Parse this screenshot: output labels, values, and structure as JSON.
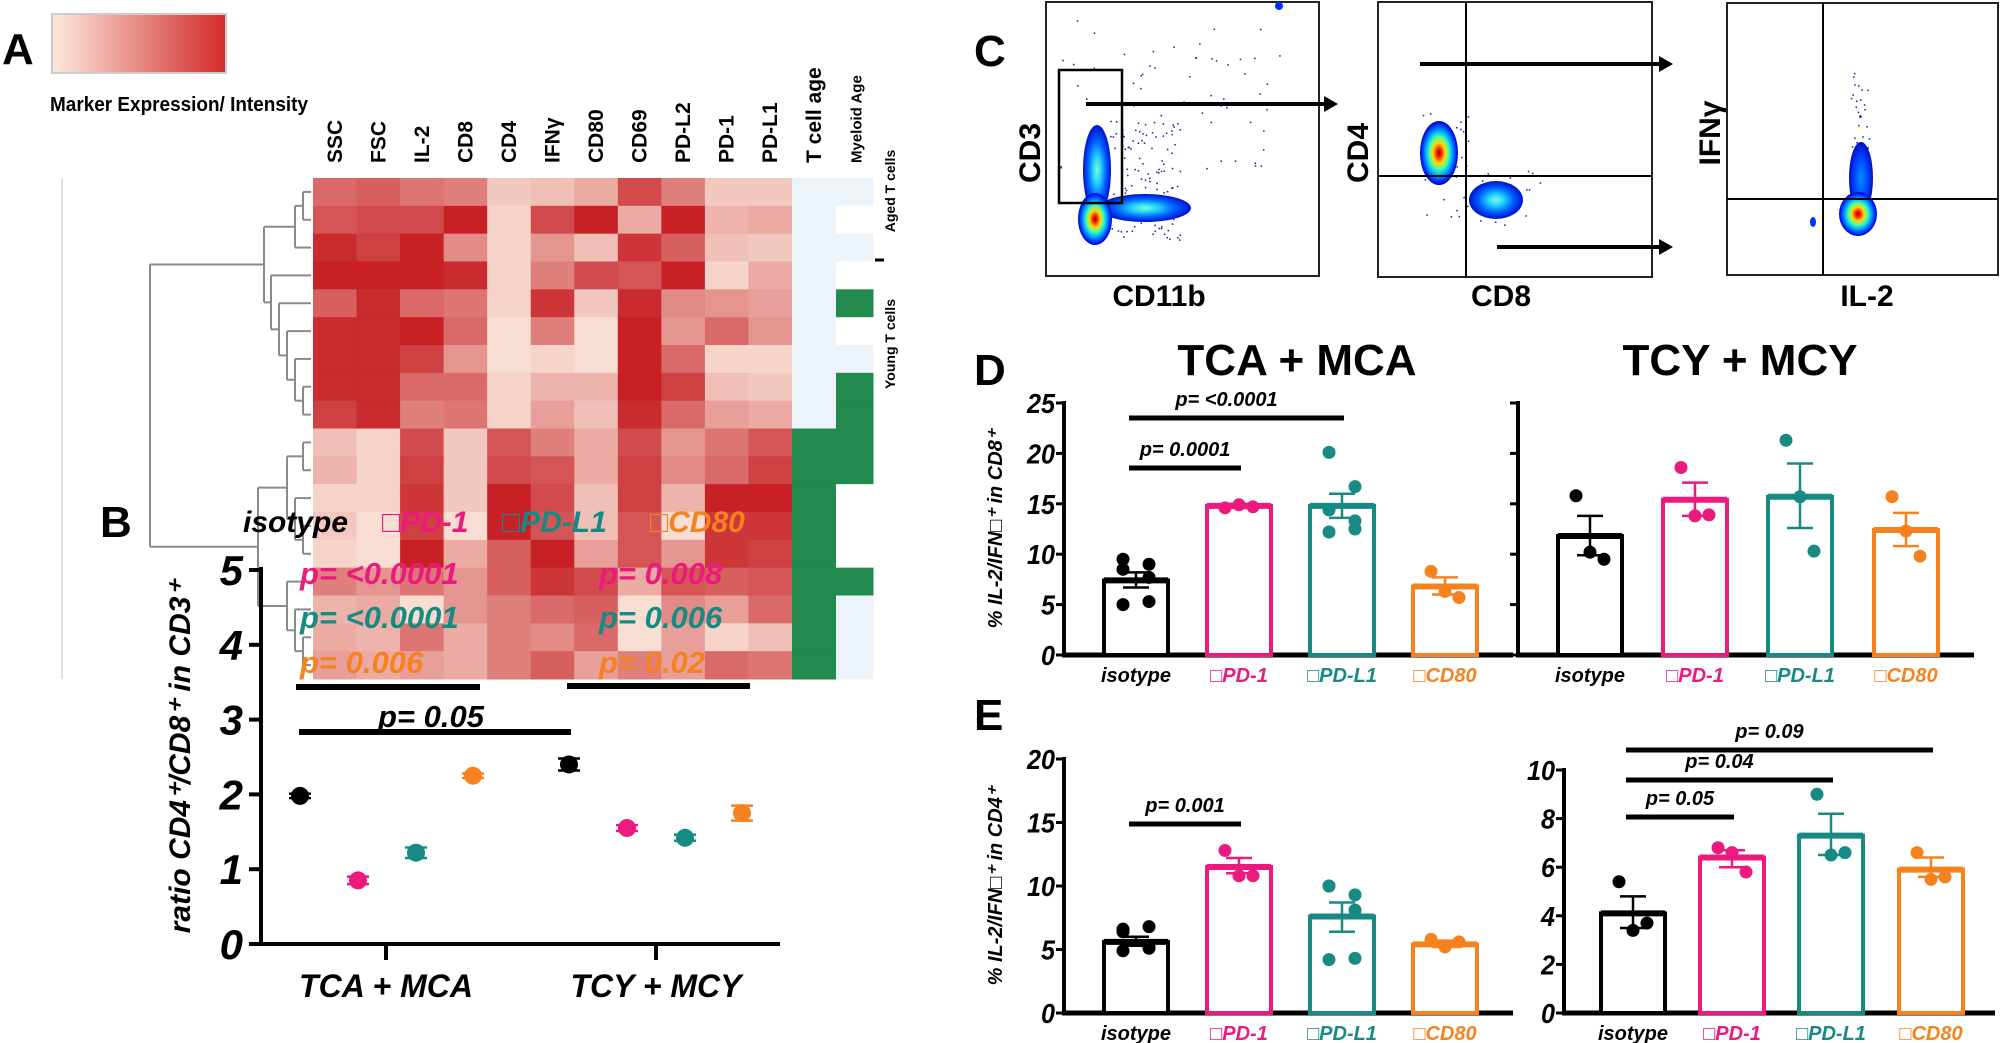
{
  "panel_labels": {
    "a": "A",
    "b": "B",
    "c": "C",
    "d": "D",
    "e": "E"
  },
  "colors": {
    "isotype": "#000000",
    "pd1": "#ec1a7f",
    "pdl1": "#168a83",
    "cd80": "#f5821f",
    "heat_low": "#fbe9dc",
    "heat_high": "#c4161c",
    "young": "#218a4c",
    "aged": "#edf4f9",
    "none": "#ffffff"
  },
  "flow": {
    "plots": [
      {
        "xlabel": "CD11b",
        "ylabel": "CD3"
      },
      {
        "xlabel": "CD8",
        "ylabel": "CD4"
      },
      {
        "xlabel": "IL-2",
        "ylabel": "IFNγ"
      }
    ]
  },
  "panel_b_legend": [
    "isotype",
    "□PD-1",
    "□PD-L1",
    "□CD80"
  ],
  "panel_d_titles": [
    "TCA + MCA",
    "TCY + MCY"
  ],
  "chart_data": [
    {
      "type": "heatmap",
      "legend_label": "Marker Expression/ Intensity",
      "columns": [
        "SSC",
        "FSC",
        "IL-2",
        "CD8",
        "CD4",
        "IFNγ",
        "CD80",
        "CD69",
        "PD-L2",
        "PD-1",
        "PD-L1"
      ],
      "annotation_columns": [
        "T cell age",
        "Myeloid Age"
      ],
      "row_group_labels": [
        "Aged T cells",
        "Young T cells"
      ],
      "scale": [
        0,
        1
      ],
      "values": [
        [
          0.6,
          0.65,
          0.55,
          0.5,
          0.15,
          0.2,
          0.3,
          0.75,
          0.5,
          0.15,
          0.15
        ],
        [
          0.7,
          0.75,
          0.75,
          0.95,
          0.1,
          0.75,
          0.95,
          0.3,
          0.95,
          0.25,
          0.3
        ],
        [
          0.9,
          0.8,
          0.95,
          0.45,
          0.1,
          0.4,
          0.2,
          0.85,
          0.65,
          0.2,
          0.15
        ],
        [
          0.95,
          0.95,
          0.95,
          0.9,
          0.1,
          0.5,
          0.75,
          0.7,
          0.95,
          0.1,
          0.3
        ],
        [
          0.65,
          0.9,
          0.6,
          0.55,
          0.1,
          0.85,
          0.15,
          0.9,
          0.45,
          0.4,
          0.35
        ],
        [
          0.9,
          0.9,
          0.95,
          0.6,
          0.05,
          0.5,
          0.05,
          0.95,
          0.4,
          0.6,
          0.4
        ],
        [
          0.9,
          0.9,
          0.8,
          0.4,
          0.05,
          0.1,
          0.05,
          0.95,
          0.6,
          0.1,
          0.1
        ],
        [
          0.9,
          0.9,
          0.6,
          0.6,
          0.1,
          0.25,
          0.25,
          0.95,
          0.8,
          0.2,
          0.15
        ],
        [
          0.8,
          0.9,
          0.5,
          0.55,
          0.1,
          0.35,
          0.2,
          0.9,
          0.6,
          0.35,
          0.3
        ],
        [
          0.2,
          0.1,
          0.75,
          0.15,
          0.7,
          0.5,
          0.3,
          0.75,
          0.4,
          0.55,
          0.7
        ],
        [
          0.25,
          0.1,
          0.8,
          0.15,
          0.75,
          0.7,
          0.3,
          0.8,
          0.45,
          0.6,
          0.8
        ],
        [
          0.1,
          0.1,
          0.85,
          0.15,
          0.95,
          0.75,
          0.2,
          0.8,
          0.25,
          0.95,
          0.95
        ],
        [
          0.15,
          0.05,
          0.8,
          0.05,
          0.95,
          0.7,
          0.2,
          0.7,
          0.05,
          0.85,
          0.85
        ],
        [
          0.1,
          0.05,
          0.95,
          0.3,
          0.65,
          0.95,
          0.35,
          0.7,
          0.4,
          0.85,
          0.8
        ],
        [
          0.5,
          0.4,
          0.55,
          0.4,
          0.65,
          0.85,
          0.75,
          0.3,
          0.7,
          0.65,
          0.7
        ],
        [
          0.25,
          0.3,
          0.05,
          0.4,
          0.5,
          0.6,
          0.65,
          0.05,
          0.45,
          0.35,
          0.6
        ],
        [
          0.3,
          0.25,
          0.55,
          0.3,
          0.5,
          0.45,
          0.6,
          0.05,
          0.35,
          0.1,
          0.2
        ],
        [
          0.35,
          0.3,
          0.35,
          0.3,
          0.5,
          0.65,
          0.35,
          0.5,
          0.35,
          0.6,
          0.55
        ]
      ],
      "t_cell_age": [
        "aged",
        "aged",
        "aged",
        "aged",
        "aged",
        "aged",
        "aged",
        "aged",
        "aged",
        "young",
        "young",
        "young",
        "young",
        "young",
        "young",
        "young",
        "young",
        "young"
      ],
      "myeloid_age": [
        "aged",
        "none",
        "aged",
        "none",
        "young",
        "none",
        "aged",
        "young",
        "young",
        "young",
        "young",
        "none",
        "none",
        "none",
        "young",
        "aged",
        "aged",
        "aged"
      ]
    },
    {
      "type": "scatter",
      "ylabel": "ratio CD4⁺/CD8⁺ in CD3⁺",
      "ylim": [
        0,
        5
      ],
      "yticks": [
        0,
        1,
        2,
        3,
        4,
        5
      ],
      "categories": [
        "TCA + MCA",
        "TCY + MCY"
      ],
      "series": [
        {
          "name": "isotype",
          "color": "#000000",
          "mean": [
            1.98,
            2.4
          ],
          "sem": [
            0.03,
            0.08
          ]
        },
        {
          "name": "□PD-1",
          "color": "#ec1a7f",
          "mean": [
            0.85,
            1.55
          ],
          "sem": [
            0.05,
            0.04
          ]
        },
        {
          "name": "□PD-L1",
          "color": "#168a83",
          "mean": [
            1.22,
            1.42
          ],
          "sem": [
            0.07,
            0.04
          ]
        },
        {
          "name": "□CD80",
          "color": "#f5821f",
          "mean": [
            2.25,
            1.75
          ],
          "sem": [
            0.03,
            0.1
          ]
        }
      ],
      "annotations": {
        "left": [
          {
            "text": "p= <0.0001",
            "color": "#ec1a7f"
          },
          {
            "text": "p= <0.0001",
            "color": "#168a83"
          },
          {
            "text": "p= 0.006",
            "color": "#f5821f"
          }
        ],
        "right": [
          {
            "text": "p= 0.008",
            "color": "#ec1a7f"
          },
          {
            "text": "p= 0.006",
            "color": "#168a83"
          },
          {
            "text": "p= 0.02",
            "color": "#f5821f"
          }
        ],
        "between_groups": "p= 0.05"
      }
    },
    {
      "type": "bar",
      "title": "TCA + MCA",
      "ylabel": "% IL-2/IFN□⁺ in CD8⁺",
      "ylim": [
        0,
        25
      ],
      "yticks": [
        0,
        5,
        10,
        15,
        20,
        25
      ],
      "show_tick_labels": true,
      "categories": [
        "isotype",
        "□PD-1",
        "□PD-L1",
        "□CD80"
      ],
      "category_colors": [
        "#000000",
        "#ec1a7f",
        "#168a83",
        "#f5821f"
      ],
      "bars": [
        {
          "mean": 7.4,
          "sem_low": 6.7,
          "sem_high": 8.2,
          "points": [
            9.5,
            9.0,
            8.5,
            7.7,
            5.0,
            5.3
          ]
        },
        {
          "mean": 14.8,
          "sem_low": 14.6,
          "sem_high": 15.0,
          "points": [
            14.6,
            14.9,
            14.7
          ]
        },
        {
          "mean": 14.8,
          "sem_low": 13.6,
          "sem_high": 16.0,
          "points": [
            20.1,
            16.7,
            14.4,
            13.3,
            12.2,
            12.5
          ]
        },
        {
          "mean": 6.8,
          "sem_low": 6.0,
          "sem_high": 7.7,
          "points": [
            8.3,
            6.3,
            5.7
          ]
        }
      ],
      "comparisons": [
        {
          "from": 0,
          "to": 1,
          "label": "p= 0.0001"
        },
        {
          "from": 0,
          "to": 2,
          "label": "p= <0.0001"
        }
      ]
    },
    {
      "type": "bar",
      "title": "TCY + MCY",
      "ylim": [
        0,
        25
      ],
      "yticks": [
        0,
        5,
        10,
        15,
        20,
        25
      ],
      "show_tick_labels": false,
      "categories": [
        "isotype",
        "□PD-1",
        "□PD-L1",
        "□CD80"
      ],
      "category_colors": [
        "#000000",
        "#ec1a7f",
        "#168a83",
        "#f5821f"
      ],
      "bars": [
        {
          "mean": 11.8,
          "sem_low": 9.9,
          "sem_high": 13.8,
          "points": [
            15.8,
            10.2,
            9.5
          ]
        },
        {
          "mean": 15.4,
          "sem_low": 13.8,
          "sem_high": 17.1,
          "points": [
            18.6,
            13.8,
            13.9
          ]
        },
        {
          "mean": 15.7,
          "sem_low": 12.6,
          "sem_high": 19.0,
          "points": [
            21.3,
            15.7,
            10.3
          ]
        },
        {
          "mean": 12.4,
          "sem_low": 10.8,
          "sem_high": 14.1,
          "points": [
            15.7,
            12.3,
            9.8
          ]
        }
      ],
      "comparisons": []
    },
    {
      "type": "bar",
      "ylabel": "% IL-2/IFN□⁺ in CD4⁺",
      "ylim": [
        0,
        20
      ],
      "yticks": [
        0,
        5,
        10,
        15,
        20
      ],
      "show_tick_labels": true,
      "categories": [
        "isotype",
        "□PD-1",
        "□PD-L1",
        "□CD80"
      ],
      "category_colors": [
        "#000000",
        "#ec1a7f",
        "#168a83",
        "#f5821f"
      ],
      "bars": [
        {
          "mean": 5.6,
          "sem_low": 5.3,
          "sem_high": 6.0,
          "points": [
            6.6,
            6.8,
            6.4,
            5.1,
            4.9,
            5.2
          ]
        },
        {
          "mean": 11.5,
          "sem_low": 11.0,
          "sem_high": 12.2,
          "points": [
            12.8,
            10.8,
            10.8
          ]
        },
        {
          "mean": 7.6,
          "sem_low": 6.4,
          "sem_high": 8.7,
          "points": [
            10.0,
            9.3,
            10.0,
            8.1,
            4.2,
            4.3
          ]
        },
        {
          "mean": 5.4,
          "sem_low": 5.2,
          "sem_high": 5.7,
          "points": [
            5.8,
            5.2,
            5.6
          ]
        }
      ],
      "comparisons": [
        {
          "from": 0,
          "to": 1,
          "label": "p= 0.001"
        }
      ]
    },
    {
      "type": "bar",
      "ylim": [
        0,
        10
      ],
      "yticks": [
        0,
        2,
        4,
        6,
        8,
        10
      ],
      "show_tick_labels": true,
      "categories": [
        "isotype",
        "□PD-1",
        "□PD-L1",
        "□CD80"
      ],
      "category_colors": [
        "#000000",
        "#ec1a7f",
        "#168a83",
        "#f5821f"
      ],
      "bars": [
        {
          "mean": 4.1,
          "sem_low": 3.5,
          "sem_high": 4.8,
          "points": [
            5.4,
            3.4,
            3.7
          ]
        },
        {
          "mean": 6.4,
          "sem_low": 6.0,
          "sem_high": 6.7,
          "points": [
            6.8,
            6.6,
            5.8
          ]
        },
        {
          "mean": 7.3,
          "sem_low": 6.5,
          "sem_high": 8.2,
          "points": [
            9.0,
            6.5,
            6.6
          ]
        },
        {
          "mean": 5.9,
          "sem_low": 5.6,
          "sem_high": 6.4,
          "points": [
            6.6,
            5.5,
            5.6
          ]
        }
      ],
      "comparisons": [
        {
          "from": 0,
          "to": 1,
          "label": "p= 0.05"
        },
        {
          "from": 0,
          "to": 2,
          "label": "p= 0.04"
        },
        {
          "from": 0,
          "to": 3,
          "label": "p= 0.09"
        }
      ]
    }
  ]
}
